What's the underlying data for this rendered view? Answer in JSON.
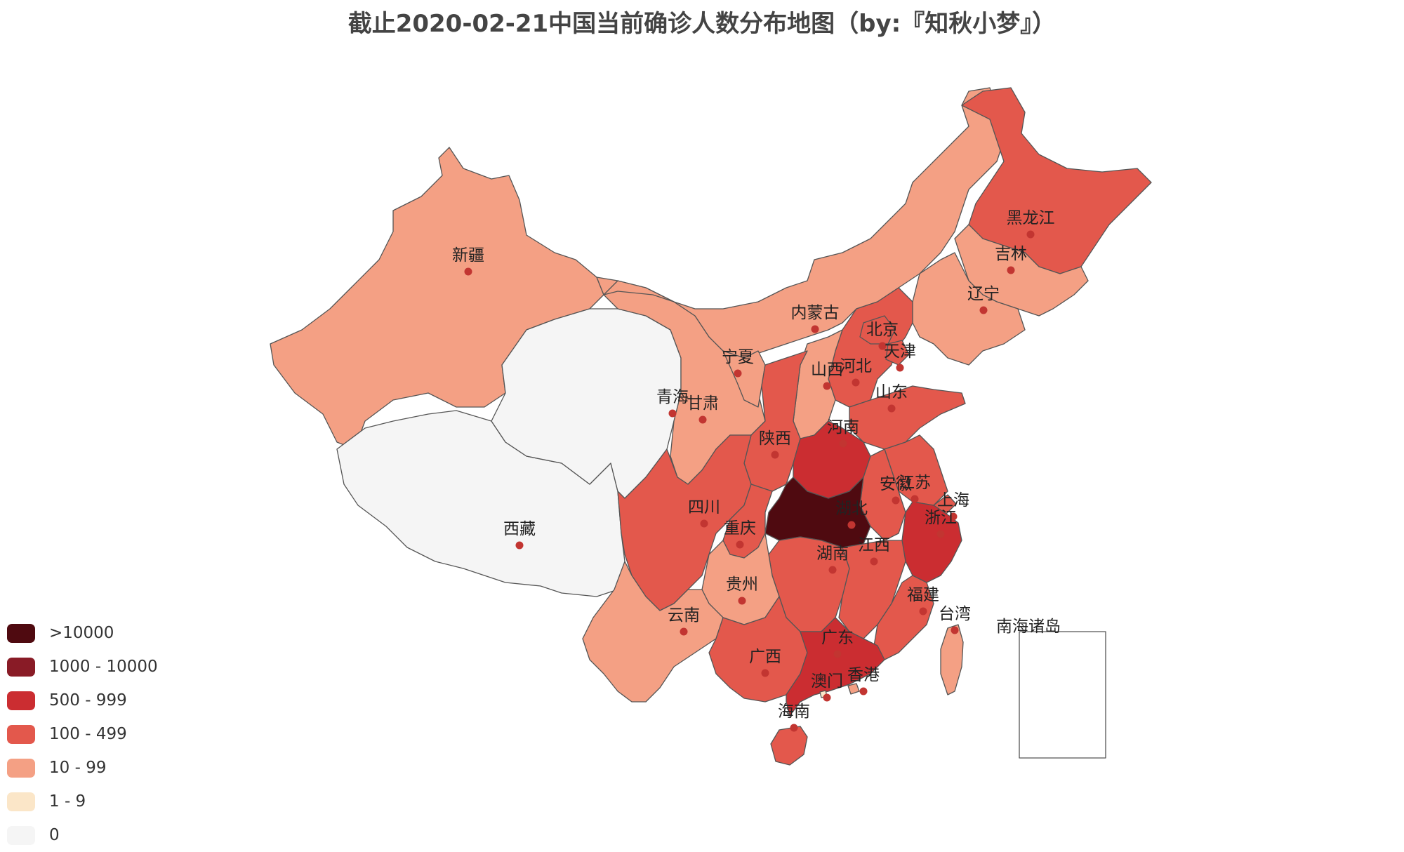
{
  "title": "截止2020-02-21中国当前确诊人数分布地图（by:『知秋小梦』）",
  "legend": [
    {
      "label": ">10000",
      "color": "#4f0a10"
    },
    {
      "label": "1000 - 10000",
      "color": "#891b26"
    },
    {
      "label": "500 - 999",
      "color": "#cb2d31"
    },
    {
      "label": "100 - 499",
      "color": "#e3584c"
    },
    {
      "label": "10 - 99",
      "color": "#f4a084"
    },
    {
      "label": "1 - 9",
      "color": "#fbe6c8"
    },
    {
      "label": "0",
      "color": "#f5f5f5"
    }
  ],
  "provinces": [
    {
      "key": "xinjiang",
      "name": "新疆",
      "bin": "10 - 99"
    },
    {
      "key": "xizang",
      "name": "西藏",
      "bin": "0"
    },
    {
      "key": "qinghai",
      "name": "青海",
      "bin": "0"
    },
    {
      "key": "gansu",
      "name": "甘肃",
      "bin": "10 - 99"
    },
    {
      "key": "neimenggu",
      "name": "内蒙古",
      "bin": "10 - 99"
    },
    {
      "key": "ningxia",
      "name": "宁夏",
      "bin": "10 - 99"
    },
    {
      "key": "heilongjiang",
      "name": "黑龙江",
      "bin": "100 - 499"
    },
    {
      "key": "jilin",
      "name": "吉林",
      "bin": "10 - 99"
    },
    {
      "key": "liaoning",
      "name": "辽宁",
      "bin": "10 - 99"
    },
    {
      "key": "beijing",
      "name": "北京",
      "bin": "100 - 499"
    },
    {
      "key": "tianjin",
      "name": "天津",
      "bin": "100 - 499"
    },
    {
      "key": "hebei",
      "name": "河北",
      "bin": "100 - 499"
    },
    {
      "key": "shanxi",
      "name": "山西",
      "bin": "10 - 99"
    },
    {
      "key": "shandong",
      "name": "山东",
      "bin": "100 - 499"
    },
    {
      "key": "shaanxi",
      "name": "陕西",
      "bin": "100 - 499"
    },
    {
      "key": "henan",
      "name": "河南",
      "bin": "500 - 999"
    },
    {
      "key": "jiangsu",
      "name": "江苏",
      "bin": "100 - 499"
    },
    {
      "key": "anhui",
      "name": "安徽",
      "bin": "100 - 499"
    },
    {
      "key": "shanghai",
      "name": "上海",
      "bin": "100 - 499"
    },
    {
      "key": "zhejiang",
      "name": "浙江",
      "bin": "500 - 999"
    },
    {
      "key": "hubei",
      "name": "湖北",
      "bin": ">10000"
    },
    {
      "key": "sichuan",
      "name": "四川",
      "bin": "100 - 499"
    },
    {
      "key": "chongqing",
      "name": "重庆",
      "bin": "100 - 499"
    },
    {
      "key": "hunan",
      "name": "湖南",
      "bin": "100 - 499"
    },
    {
      "key": "jiangxi",
      "name": "江西",
      "bin": "100 - 499"
    },
    {
      "key": "guizhou",
      "name": "贵州",
      "bin": "10 - 99"
    },
    {
      "key": "yunnan",
      "name": "云南",
      "bin": "10 - 99"
    },
    {
      "key": "fujian",
      "name": "福建",
      "bin": "100 - 499"
    },
    {
      "key": "taiwan",
      "name": "台湾",
      "bin": "10 - 99"
    },
    {
      "key": "guangxi",
      "name": "广西",
      "bin": "100 - 499"
    },
    {
      "key": "guangdong",
      "name": "广东",
      "bin": "500 - 999"
    },
    {
      "key": "aomen",
      "name": "澳门",
      "bin": "1 - 9"
    },
    {
      "key": "xianggang",
      "name": "香港",
      "bin": "10 - 99"
    },
    {
      "key": "hainan",
      "name": "海南",
      "bin": "100 - 499"
    },
    {
      "key": "nanhai",
      "name": "南海诸岛",
      "bin": "0"
    }
  ]
}
